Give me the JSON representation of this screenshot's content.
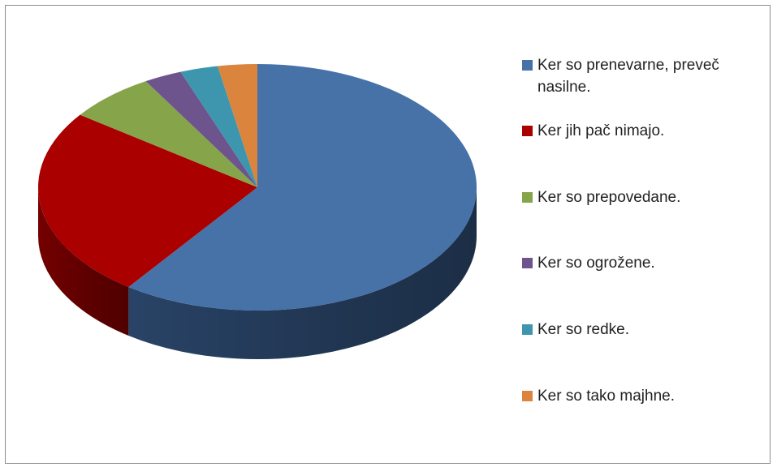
{
  "chart_data": {
    "type": "pie",
    "title": "",
    "three_d": true,
    "legend_position": "right",
    "categories": [
      "Ker so prenevarne, preveč nasilne.",
      "Ker jih pač nimajo.",
      "Ker so prepovedane.",
      "Ker so ogrožene.",
      "Ker so redke.",
      "Ker so tako majhne."
    ],
    "values": [
      60,
      25,
      6.5,
      2.8,
      2.8,
      2.9
    ],
    "colors": [
      "#4672a8",
      "#aa0000",
      "#86a44a",
      "#6e548d",
      "#3d96ae",
      "#db843d"
    ],
    "side_colors": [
      "#2b476c",
      "#7a0000",
      "#5d7433",
      "#4c3a63",
      "#2a6a7b",
      "#9c5c2a"
    ]
  }
}
